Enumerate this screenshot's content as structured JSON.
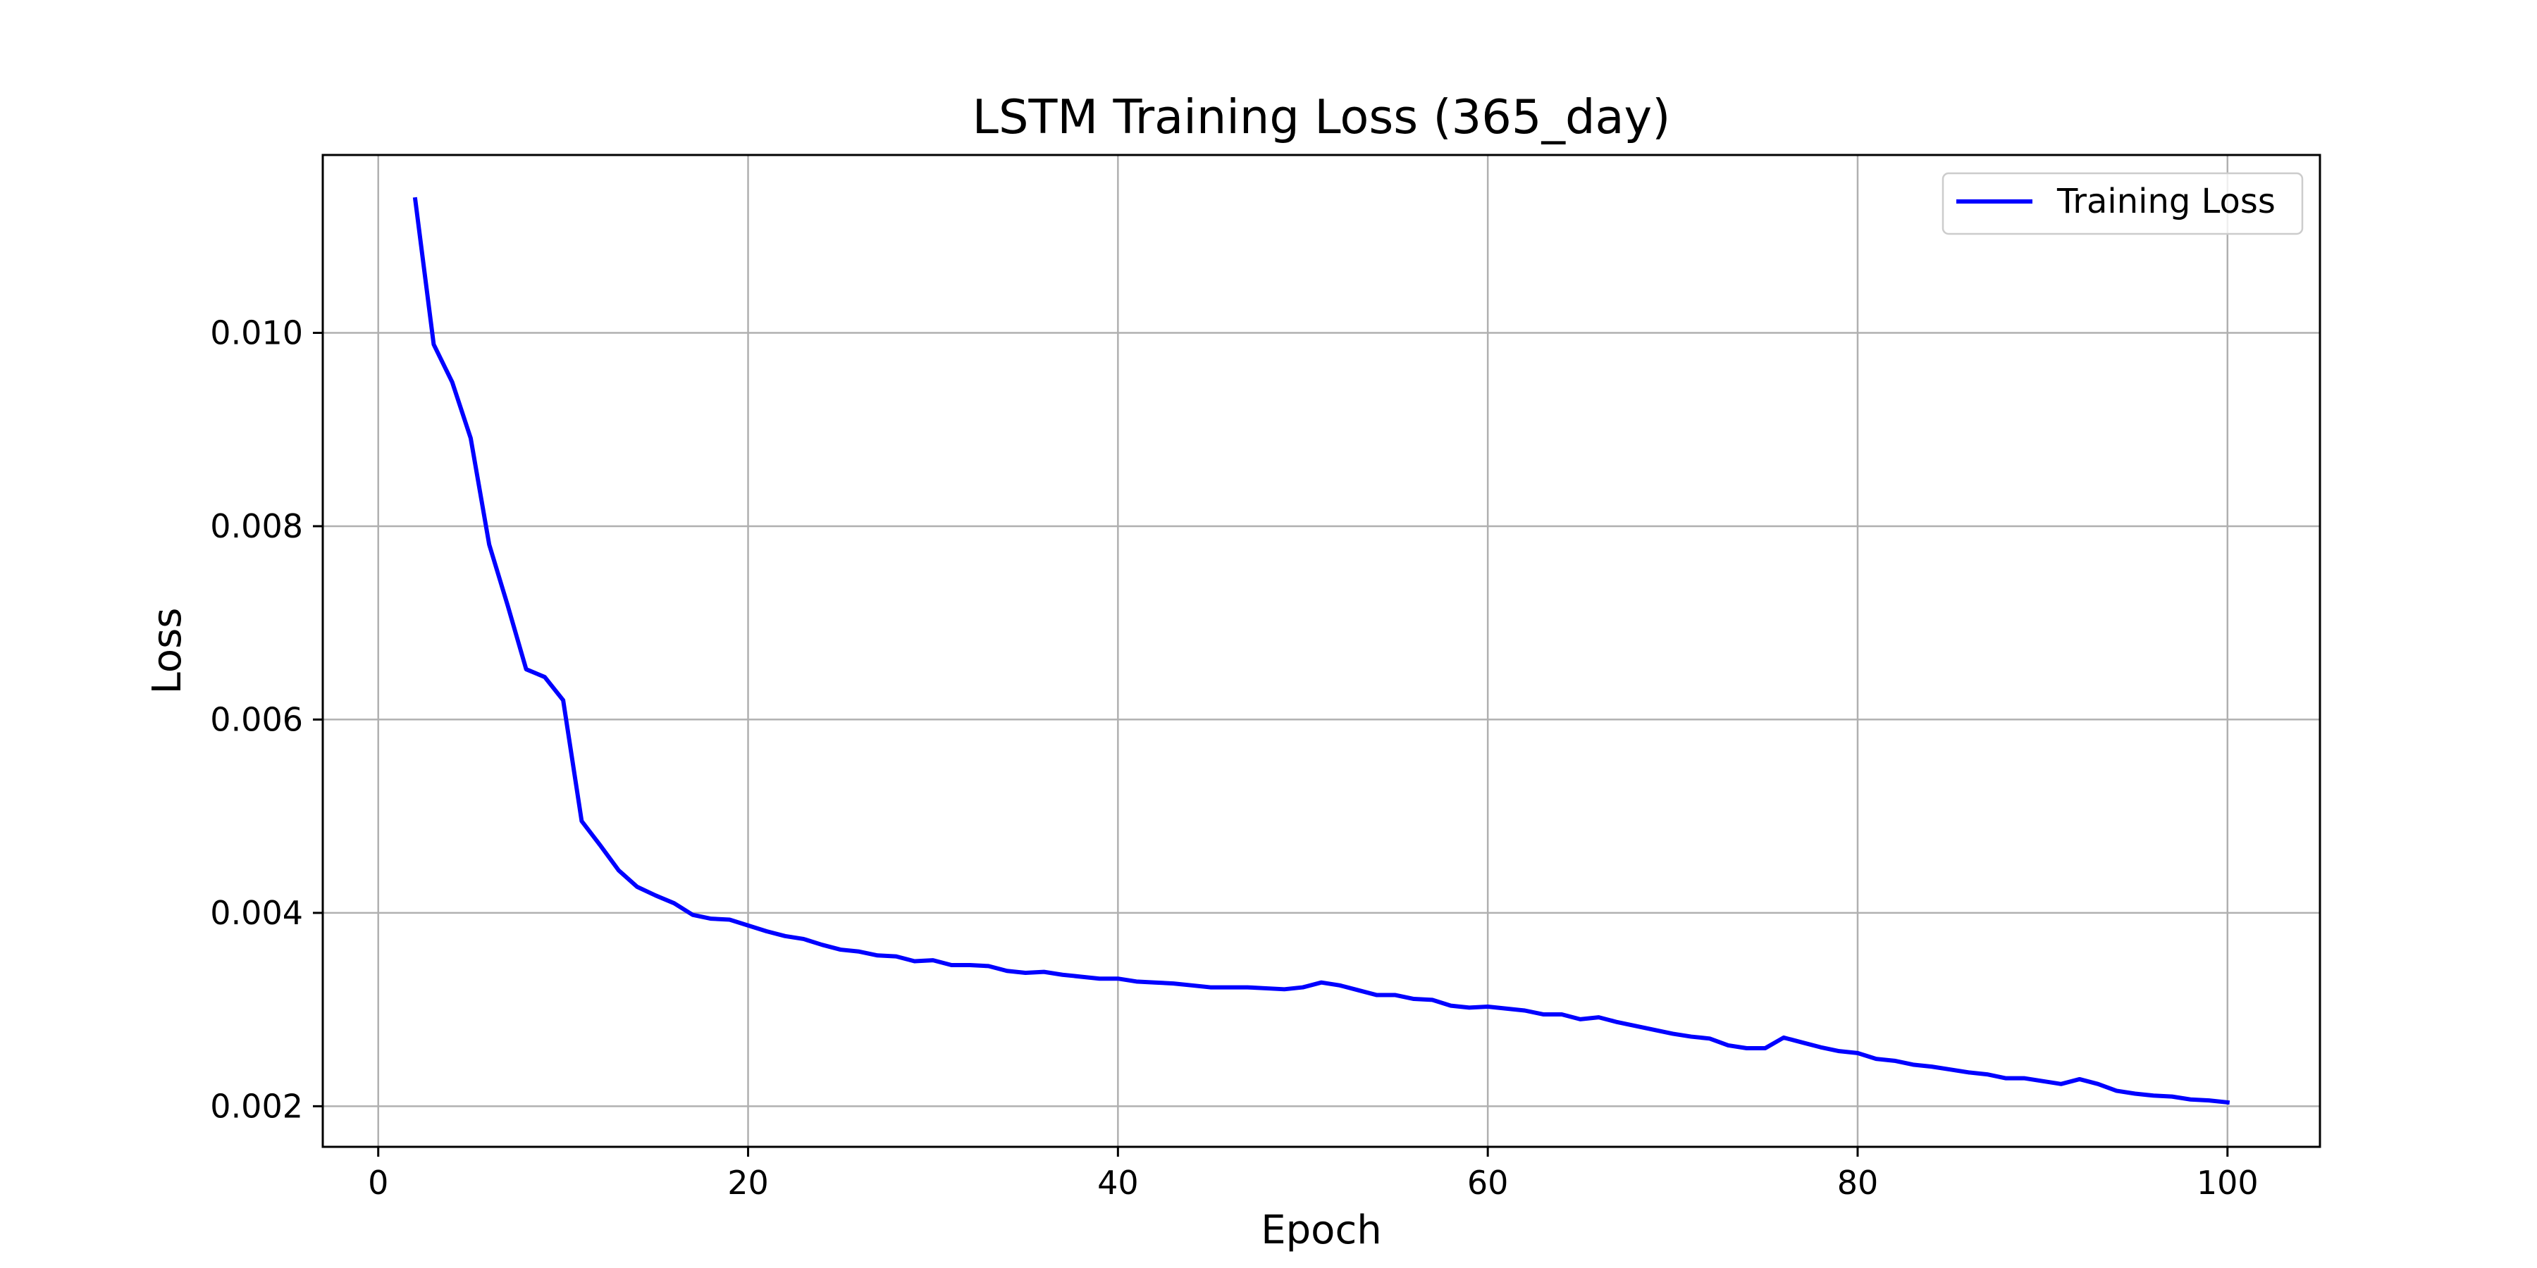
{
  "chart_data": {
    "type": "line",
    "title": "LSTM Training Loss (365_day)",
    "xlabel": "Epoch",
    "ylabel": "Loss",
    "xlim": [
      -3,
      105
    ],
    "ylim": [
      0.00158,
      0.01184
    ],
    "xticks": [
      0,
      20,
      40,
      60,
      80,
      100
    ],
    "xtick_labels": [
      "0",
      "20",
      "40",
      "60",
      "80",
      "100"
    ],
    "yticks": [
      0.002,
      0.004,
      0.006,
      0.008,
      0.01
    ],
    "ytick_labels": [
      "0.002",
      "0.004",
      "0.006",
      "0.008",
      "0.010"
    ],
    "grid": true,
    "legend_position": "top-right",
    "series": [
      {
        "name": "Training Loss",
        "color": "#0000ff",
        "x": [
          2,
          3,
          4,
          5,
          6,
          7,
          8,
          9,
          10,
          11,
          12,
          13,
          14,
          15,
          16,
          17,
          18,
          19,
          20,
          21,
          22,
          23,
          24,
          25,
          26,
          27,
          28,
          29,
          30,
          31,
          32,
          33,
          34,
          35,
          36,
          37,
          38,
          39,
          40,
          41,
          42,
          43,
          44,
          45,
          46,
          47,
          48,
          49,
          50,
          51,
          52,
          53,
          54,
          55,
          56,
          57,
          58,
          59,
          60,
          61,
          62,
          63,
          64,
          65,
          66,
          67,
          68,
          69,
          70,
          71,
          72,
          73,
          74,
          75,
          76,
          77,
          78,
          79,
          80,
          81,
          82,
          83,
          84,
          85,
          86,
          87,
          88,
          89,
          90,
          91,
          92,
          93,
          94,
          95,
          96,
          97,
          98,
          99,
          100
        ],
        "y": [
          0.01138,
          0.00988,
          0.00949,
          0.00891,
          0.00781,
          0.00718,
          0.00652,
          0.00644,
          0.0062,
          0.00495,
          0.0047,
          0.00444,
          0.00427,
          0.00418,
          0.0041,
          0.00398,
          0.00394,
          0.00393,
          0.00387,
          0.00381,
          0.00376,
          0.00373,
          0.00367,
          0.00362,
          0.0036,
          0.00356,
          0.00355,
          0.0035,
          0.00351,
          0.00346,
          0.00346,
          0.00345,
          0.0034,
          0.00338,
          0.00339,
          0.00336,
          0.00334,
          0.00332,
          0.00332,
          0.00329,
          0.00328,
          0.00327,
          0.00325,
          0.00323,
          0.00323,
          0.00323,
          0.00322,
          0.00321,
          0.00323,
          0.00328,
          0.00325,
          0.0032,
          0.00315,
          0.00315,
          0.00311,
          0.0031,
          0.00304,
          0.00302,
          0.00303,
          0.00301,
          0.00299,
          0.00295,
          0.00295,
          0.0029,
          0.00292,
          0.00287,
          0.00283,
          0.00279,
          0.00275,
          0.00272,
          0.0027,
          0.00263,
          0.0026,
          0.0026,
          0.00271,
          0.00266,
          0.00261,
          0.00257,
          0.00255,
          0.00249,
          0.00247,
          0.00243,
          0.00241,
          0.00238,
          0.00235,
          0.00233,
          0.00229,
          0.00229,
          0.00226,
          0.00223,
          0.00228,
          0.00223,
          0.00216,
          0.00213,
          0.00211,
          0.0021,
          0.00207,
          0.00206,
          0.00204
        ]
      }
    ]
  }
}
